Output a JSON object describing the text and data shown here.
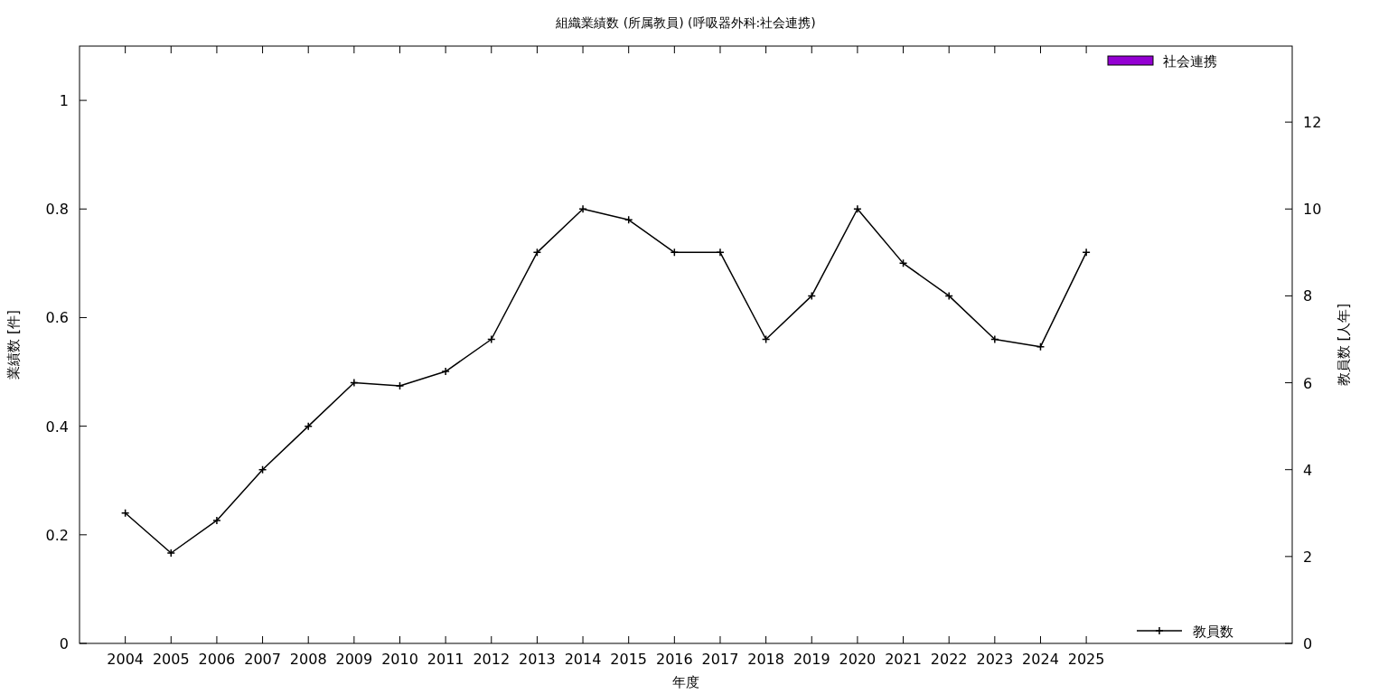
{
  "chart_data": {
    "type": "line",
    "title": "組織業績数 (所属教員) (呼吸器外科:社会連携)",
    "xlabel": "年度",
    "ylabel": "業績数 [件]",
    "y2label": "教員数 [人年]",
    "x": [
      2004,
      2005,
      2006,
      2007,
      2008,
      2009,
      2010,
      2011,
      2012,
      2013,
      2014,
      2015,
      2016,
      2017,
      2018,
      2019,
      2020,
      2021,
      2022,
      2023,
      2024,
      2025
    ],
    "xlim": [
      2003,
      2029.5
    ],
    "xticks": [
      2004,
      2005,
      2006,
      2007,
      2008,
      2009,
      2010,
      2011,
      2012,
      2013,
      2014,
      2015,
      2016,
      2017,
      2018,
      2019,
      2020,
      2021,
      2022,
      2023,
      2024,
      2025
    ],
    "ylim": [
      0,
      1.1
    ],
    "yticks": [
      0,
      0.2,
      0.4,
      0.6,
      0.8,
      1
    ],
    "y2lim": [
      0,
      13.75
    ],
    "y2ticks": [
      0,
      2,
      4,
      6,
      8,
      10,
      12
    ],
    "series": [
      {
        "name": "社会連携",
        "type": "bar",
        "color": "#9400d3",
        "values": [
          0,
          0,
          0,
          0,
          0,
          0,
          0,
          0,
          0,
          0,
          0,
          0,
          0,
          0,
          0,
          0,
          0,
          0,
          0,
          0,
          0,
          0
        ]
      },
      {
        "name": "教員数",
        "axis": "y2",
        "color": "#000000",
        "marker": "cross",
        "values": [
          3,
          2.08,
          2.83,
          4,
          5,
          6,
          5.93,
          6.26,
          7,
          9,
          10,
          9.75,
          9,
          9,
          7,
          8,
          10,
          8.75,
          8,
          7,
          6.83,
          9
        ]
      }
    ],
    "legend": "right",
    "grid": false
  }
}
